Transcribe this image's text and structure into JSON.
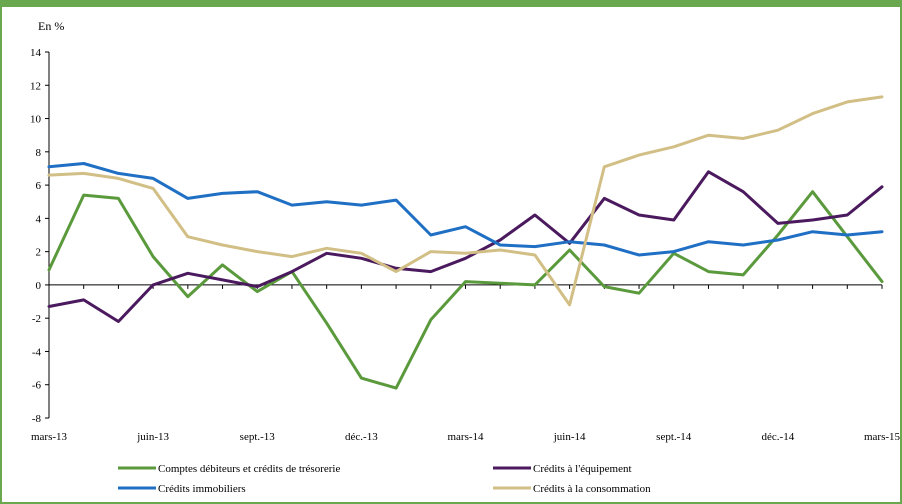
{
  "chart_data": {
    "type": "line",
    "ylabel": "En %",
    "ylim": [
      -8,
      14
    ],
    "yticks": [
      -8,
      -6,
      -4,
      -2,
      0,
      2,
      4,
      6,
      8,
      10,
      12,
      14
    ],
    "tick_labels": [
      "mars-13",
      "juin-13",
      "sept.-13",
      "déc.-13",
      "mars-14",
      "juin-14",
      "sept.-14",
      "déc.-14",
      "mars-15"
    ],
    "tick_indices": [
      0,
      3,
      6,
      9,
      12,
      15,
      18,
      21,
      24
    ],
    "n_points": 25,
    "grid": false,
    "legend_position": "bottom",
    "series": [
      {
        "name": "Comptes débiteurs et crédits de trésorerie",
        "color": "#5a9a3c",
        "values": [
          0.9,
          5.4,
          5.2,
          1.7,
          -0.7,
          1.2,
          -0.4,
          0.8,
          -2.3,
          -5.6,
          -6.2,
          -2.1,
          0.2,
          0.1,
          0.0,
          2.1,
          -0.1,
          -0.5,
          1.9,
          0.8,
          0.6,
          3.0,
          5.6,
          2.9,
          0.2
        ]
      },
      {
        "name": "Crédits à l'équipement",
        "color": "#4b1a5e",
        "values": [
          -1.3,
          -0.9,
          -2.2,
          0.0,
          0.7,
          0.3,
          -0.1,
          0.8,
          1.9,
          1.6,
          1.0,
          0.8,
          1.6,
          2.7,
          4.2,
          2.5,
          5.2,
          4.2,
          3.9,
          6.8,
          5.6,
          3.7,
          3.9,
          4.2,
          5.9
        ]
      },
      {
        "name": "Crédits immobiliers",
        "color": "#1f6fc4",
        "values": [
          7.1,
          7.3,
          6.7,
          6.4,
          5.2,
          5.5,
          5.6,
          4.8,
          5.0,
          4.8,
          5.1,
          3.0,
          3.5,
          2.4,
          2.3,
          2.6,
          2.4,
          1.8,
          2.0,
          2.6,
          2.4,
          2.7,
          3.2,
          3.0,
          3.2
        ]
      },
      {
        "name": "Crédits à la consommation",
        "color": "#d2bf86",
        "values": [
          6.6,
          6.7,
          6.4,
          5.8,
          2.9,
          2.4,
          2.0,
          1.7,
          2.2,
          1.9,
          0.8,
          2.0,
          1.9,
          2.1,
          1.8,
          -1.2,
          7.1,
          7.8,
          8.3,
          9.0,
          8.8,
          9.3,
          10.3,
          11.0,
          11.3
        ]
      }
    ]
  }
}
